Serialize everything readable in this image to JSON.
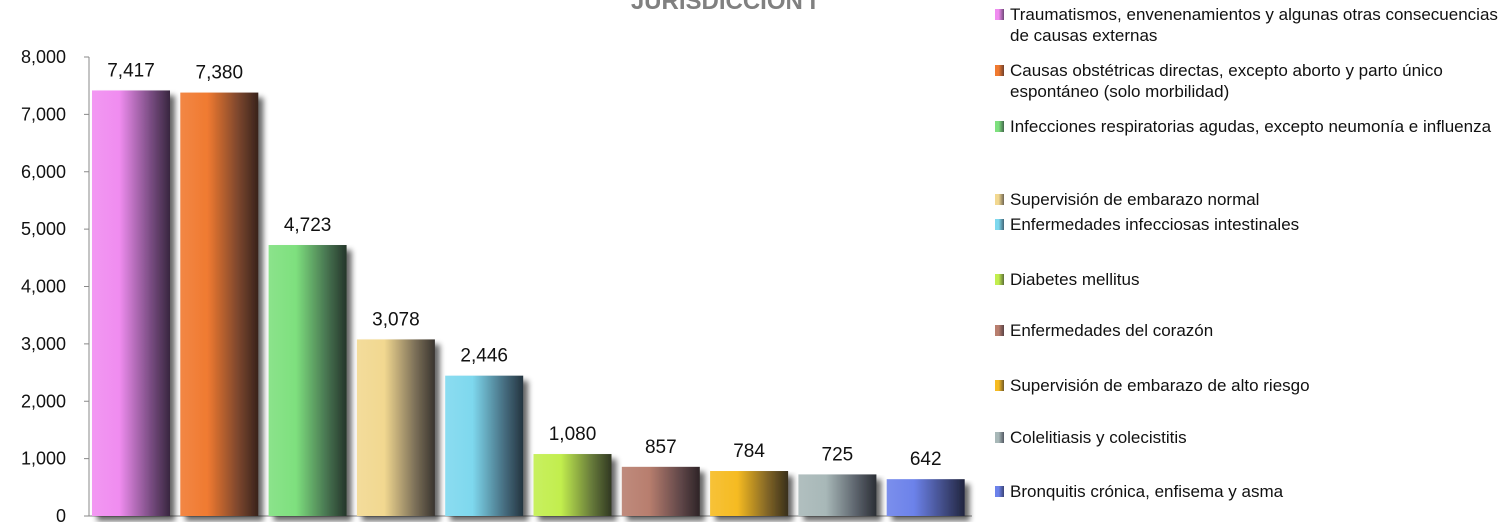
{
  "chart_data": {
    "type": "bar",
    "title": "JURISDICCIÓN I",
    "xlabel": "",
    "ylabel": "",
    "ylim": [
      0,
      8000
    ],
    "yticks": [
      0,
      1000,
      2000,
      3000,
      4000,
      5000,
      6000,
      7000,
      8000
    ],
    "ytick_labels": [
      "0",
      "1,000",
      "2,000",
      "3,000",
      "4,000",
      "5,000",
      "6,000",
      "7,000",
      "8,000"
    ],
    "grid": false,
    "legend_position": "right",
    "categories": [
      "Traumatismos, envenenamientos y algunas otras consecuencias de causas externas",
      "Causas obstétricas directas, excepto aborto y parto único espontáneo (solo morbilidad)",
      "Infecciones respiratorias agudas, excepto neumonía e influenza",
      "Supervisión de embarazo normal",
      "Enfermedades infecciosas intestinales",
      "Diabetes mellitus",
      "Enfermedades del corazón",
      "Supervisión de embarazo de alto riesgo",
      "Colelitiasis y colecistitis",
      "Bronquitis crónica, enfisema y asma"
    ],
    "values": [
      7417,
      7380,
      4723,
      3078,
      2446,
      1080,
      857,
      784,
      725,
      642
    ],
    "value_labels": [
      "7,417",
      "7,380",
      "4,723",
      "3,078",
      "2,446",
      "1,080",
      "857",
      "784",
      "725",
      "642"
    ],
    "colors": [
      "#f08cf0",
      "#f07a30",
      "#7ee07e",
      "#f2d890",
      "#7ed8ee",
      "#c2ee4e",
      "#b87e6e",
      "#f6bb22",
      "#a8b8b8",
      "#6c82ea"
    ]
  }
}
